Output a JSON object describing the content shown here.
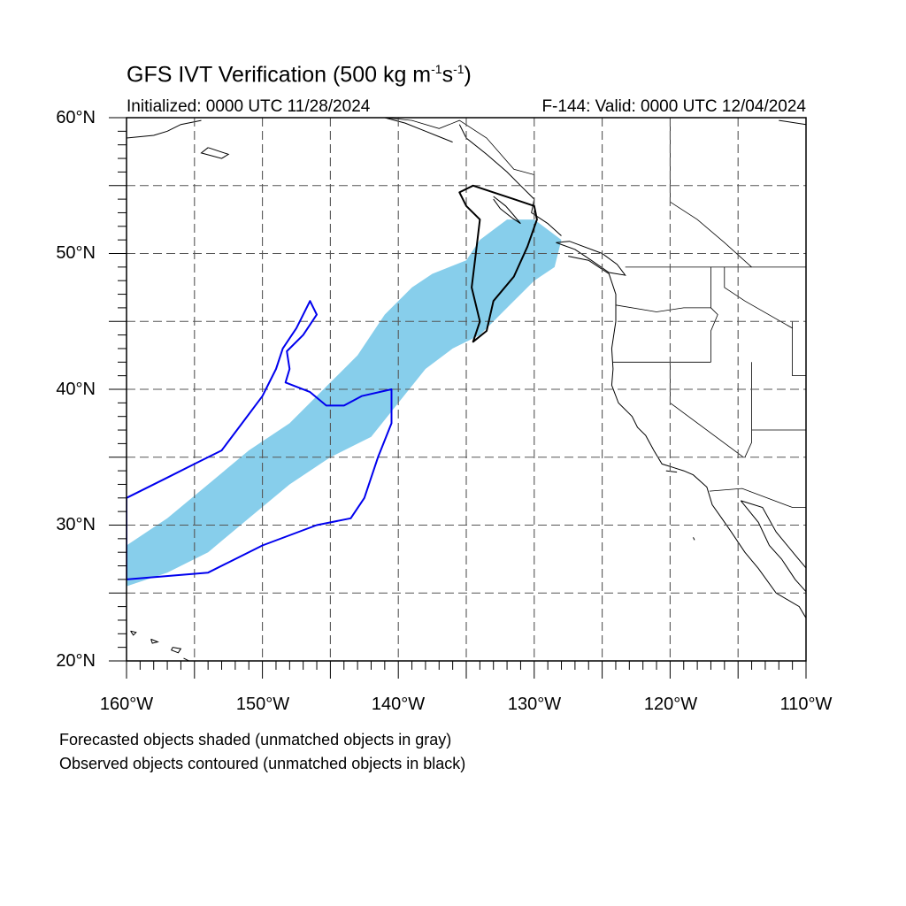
{
  "title": {
    "main": "GFS IVT Verification (500 kg m",
    "sup1": "-1",
    "mid": "s",
    "sup2": "-1",
    "end": ")"
  },
  "subtitle": {
    "initialized": "Initialized: 0000 UTC 11/28/2024",
    "valid": "F-144: Valid: 0000 UTC 12/04/2024"
  },
  "axes": {
    "lat_labels": [
      "60°N",
      "50°N",
      "40°N",
      "30°N",
      "20°N"
    ],
    "lon_labels": [
      "160°W",
      "150°W",
      "140°W",
      "130°W",
      "120°W",
      "110°W"
    ],
    "lat_range": [
      20,
      60
    ],
    "lon_range": [
      -160,
      -110
    ],
    "grid_step_deg": 5,
    "grid_style": "dashed"
  },
  "legend": {
    "line1": "Forecasted objects shaded (unmatched objects in gray)",
    "line2": "Observed objects contoured (unmatched objects in black)"
  },
  "colors": {
    "forecast_fill": "#87ceeb",
    "observed_matched": "#0000ee",
    "observed_unmatched": "#000000",
    "coastline": "#000000",
    "grid": "#555555"
  },
  "chart_data": {
    "type": "map",
    "projection": "cylindrical equidistant",
    "forecast_objects": [
      {
        "status": "matched",
        "polygon_lonlat": [
          [
            -160,
            28.5
          ],
          [
            -157,
            30.5
          ],
          [
            -154,
            33
          ],
          [
            -151,
            35.5
          ],
          [
            -148,
            37.5
          ],
          [
            -145,
            40.5
          ],
          [
            -143,
            42.5
          ],
          [
            -141,
            45.5
          ],
          [
            -139,
            47.5
          ],
          [
            -137.5,
            48.5
          ],
          [
            -135,
            49.5
          ],
          [
            -134,
            51
          ],
          [
            -132,
            52.5
          ],
          [
            -130,
            52.5
          ],
          [
            -128,
            51
          ],
          [
            -128.5,
            49
          ],
          [
            -130,
            48
          ],
          [
            -132,
            46
          ],
          [
            -134,
            44
          ],
          [
            -136,
            43
          ],
          [
            -138,
            41.5
          ],
          [
            -140,
            39
          ],
          [
            -142,
            36.5
          ],
          [
            -145,
            35
          ],
          [
            -148,
            33
          ],
          [
            -151,
            30.5
          ],
          [
            -154,
            28
          ],
          [
            -157,
            26.5
          ],
          [
            -160,
            25.5
          ]
        ]
      }
    ],
    "observed_objects": [
      {
        "status": "matched",
        "polygon_lonlat": [
          [
            -160,
            32
          ],
          [
            -157,
            33.5
          ],
          [
            -155,
            34.5
          ],
          [
            -153,
            35.5
          ],
          [
            -151.5,
            37.5
          ],
          [
            -150,
            39.5
          ],
          [
            -149,
            41.5
          ],
          [
            -148.5,
            43
          ],
          [
            -147.5,
            44.5
          ],
          [
            -146.5,
            46.5
          ],
          [
            -146,
            45.5
          ],
          [
            -147,
            44
          ],
          [
            -148.2,
            42.8
          ],
          [
            -148,
            41.5
          ],
          [
            -148.3,
            40.5
          ],
          [
            -146.5,
            39.8
          ],
          [
            -145.3,
            38.8
          ],
          [
            -144,
            38.8
          ],
          [
            -142.7,
            39.5
          ],
          [
            -140.5,
            40
          ],
          [
            -140.5,
            37.5
          ],
          [
            -141.5,
            35
          ],
          [
            -142.5,
            32
          ],
          [
            -143.5,
            30.5
          ],
          [
            -146,
            30
          ],
          [
            -150,
            28.5
          ],
          [
            -154,
            26.5
          ],
          [
            -160,
            26
          ]
        ]
      },
      {
        "status": "unmatched",
        "polygon_lonlat": [
          [
            -135,
            53.5
          ],
          [
            -134,
            52.5
          ],
          [
            -134.3,
            50
          ],
          [
            -134.6,
            47.5
          ],
          [
            -134,
            45
          ],
          [
            -134.5,
            43.5
          ],
          [
            -133.5,
            44.3
          ],
          [
            -133,
            46.5
          ],
          [
            -131.5,
            48.3
          ],
          [
            -130.5,
            50.5
          ],
          [
            -129.8,
            52.5
          ],
          [
            -130,
            53.5
          ],
          [
            -131.5,
            54
          ],
          [
            -133,
            54.5
          ],
          [
            -134.5,
            55
          ],
          [
            -135.5,
            54.5
          ]
        ]
      }
    ]
  }
}
